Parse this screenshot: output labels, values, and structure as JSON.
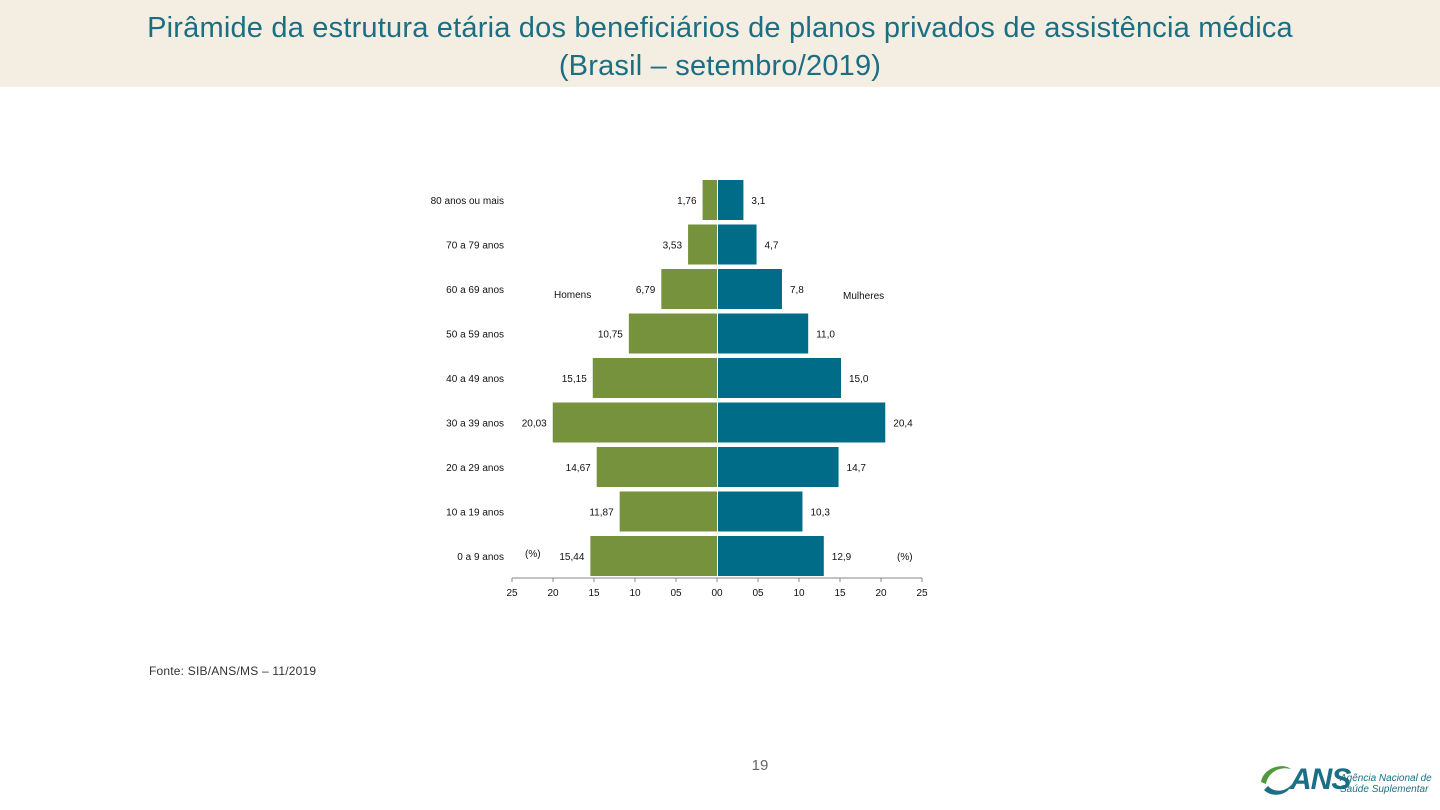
{
  "header": {
    "title_line1": "Pirâmide da estrutura etária dos beneficiários de planos privados de assistência médica",
    "title_line2": "(Brasil – setembro/2019)"
  },
  "chart_data": {
    "type": "bar",
    "orientation": "horizontal-pyramid",
    "categories": [
      "80 anos ou mais",
      "70 a 79 anos",
      "60 a 69 anos",
      "50 a 59 anos",
      "40 a 49 anos",
      "30 a 39 anos",
      "20 a 29 anos",
      "10 a 19 anos",
      "0 a 9 anos"
    ],
    "series": [
      {
        "name": "Homens",
        "side": "left",
        "color": "#76923c",
        "values": [
          1.76,
          3.53,
          6.79,
          10.75,
          15.15,
          20.03,
          14.67,
          11.87,
          15.44
        ],
        "labels": [
          "1,76",
          "3,53",
          "6,79",
          "10,75",
          "15,15",
          "20,03",
          "14,67",
          "11,87",
          "15,44"
        ]
      },
      {
        "name": "Mulheres",
        "side": "right",
        "color": "#006c87",
        "values": [
          3.1,
          4.7,
          7.8,
          11.0,
          15.0,
          20.4,
          14.7,
          10.3,
          12.9
        ],
        "labels": [
          "3,1",
          "4,7",
          "7,8",
          "11,0",
          "15,0",
          "20,4",
          "14,7",
          "10,3",
          "12,9"
        ]
      }
    ],
    "xlim": [
      -25,
      25
    ],
    "tick_labels": [
      "25",
      "20",
      "15",
      "10",
      "05",
      "00",
      "05",
      "10",
      "15",
      "20",
      "25"
    ],
    "unit_label_left": "(%)",
    "unit_label_right": "(%)",
    "grid": false,
    "legend": "inline labels beside bars"
  },
  "footer": {
    "source": "Fonte: SIB/ANS/MS – 11/2019",
    "page_number": "19"
  },
  "logo": {
    "name": "ANS",
    "line1": "Agência Nacional de",
    "line2": "Saúde Suplementar",
    "color": "#1b6f84",
    "accent": "#4f9a3a"
  }
}
